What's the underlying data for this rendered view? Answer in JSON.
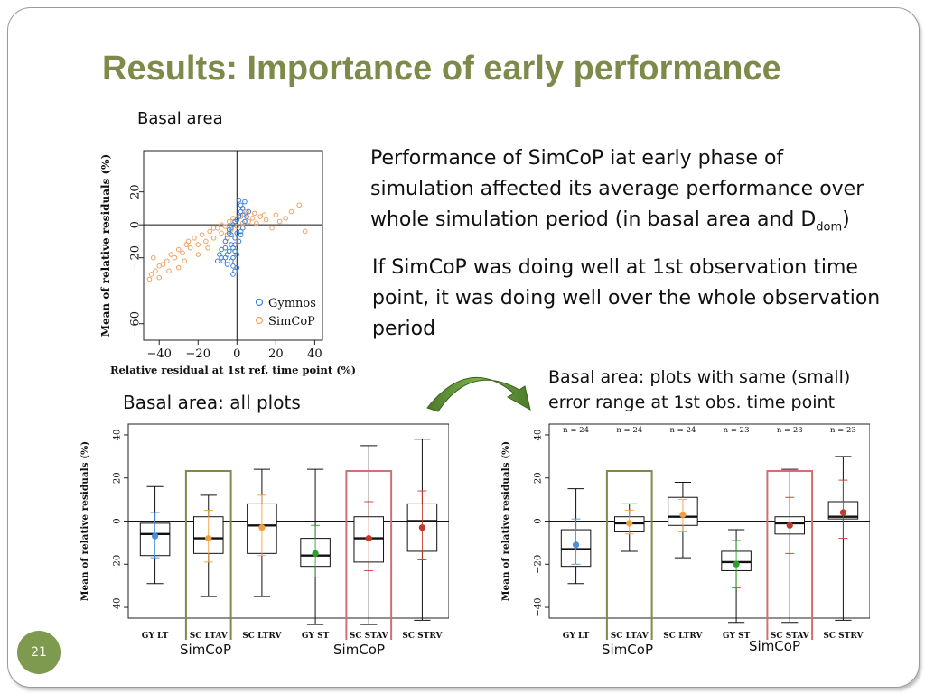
{
  "title": "Results: Importance of early performance",
  "scatter_label": "Basal area",
  "para1_a": "Performance of SimCoP iat early phase of",
  "para1_b": "simulation  affected its average performance  over",
  "para1_c": "whole  simulation period (in basal area and D",
  "para1_sub": "dom",
  "para1_end": ")",
  "para2_a": "If SimCoP was doing well at 1st observation time",
  "para2_b": "point, it was doing well over the whole observation",
  "para2_c": "period",
  "left_box_label": "Basal area: all plots",
  "right_box_label_a": "Basal area: plots with same (small)",
  "right_box_label_b": "error range at 1st obs. time point",
  "simcop_labels": [
    "SimCoP",
    "SimCoP",
    "SimCoP",
    "SimCoP"
  ],
  "slide_number": "21",
  "chart_data": [
    {
      "type": "scatter",
      "xlabel": "Relative residual at 1st ref. time point (%)",
      "ylabel": "Mean of relative residuals (%)",
      "xlim": [
        -48,
        44
      ],
      "ylim": [
        -70,
        45
      ],
      "xticks": [
        -40,
        -20,
        0,
        20,
        40
      ],
      "yticks": [
        20,
        0,
        -20,
        -60
      ],
      "legend_position": "bottom-right",
      "series": [
        {
          "name": "Gymnos",
          "color": "#3b7dd8",
          "points": [
            [
              1,
              15
            ],
            [
              2,
              12
            ],
            [
              3,
              10
            ],
            [
              4,
              14
            ],
            [
              2,
              8
            ],
            [
              1,
              5
            ],
            [
              0,
              3
            ],
            [
              -1,
              2
            ],
            [
              -2,
              0
            ],
            [
              -3,
              -2
            ],
            [
              -4,
              -5
            ],
            [
              -5,
              -8
            ],
            [
              -6,
              -10
            ],
            [
              -3,
              -12
            ],
            [
              -2,
              -14
            ],
            [
              -4,
              -16
            ],
            [
              -5,
              -18
            ],
            [
              -6,
              -20
            ],
            [
              -3,
              -22
            ],
            [
              -2,
              -25
            ],
            [
              -1,
              -28
            ],
            [
              0,
              -26
            ],
            [
              -8,
              -15
            ],
            [
              -9,
              -18
            ],
            [
              -7,
              -22
            ],
            [
              -5,
              -24
            ],
            [
              -2,
              -20
            ],
            [
              -1,
              -16
            ],
            [
              1,
              -10
            ],
            [
              2,
              -6
            ],
            [
              3,
              -2
            ],
            [
              4,
              2
            ],
            [
              5,
              5
            ],
            [
              6,
              8
            ],
            [
              0,
              -5
            ],
            [
              -1,
              -8
            ],
            [
              -3,
              -6
            ],
            [
              -4,
              -3
            ],
            [
              -6,
              -14
            ],
            [
              -8,
              -20
            ],
            [
              -10,
              -22
            ],
            [
              -1,
              -12
            ],
            [
              0,
              -18
            ],
            [
              3,
              6
            ],
            [
              2,
              -4
            ],
            [
              -2,
              -30
            ]
          ]
        },
        {
          "name": "SimCoP",
          "color": "#f0a060",
          "points": [
            [
              -45,
              -33
            ],
            [
              -44,
              -30
            ],
            [
              -42,
              -28
            ],
            [
              -40,
              -25
            ],
            [
              -38,
              -24
            ],
            [
              -43,
              -20
            ],
            [
              -36,
              -22
            ],
            [
              -34,
              -18
            ],
            [
              -32,
              -20
            ],
            [
              -30,
              -15
            ],
            [
              -28,
              -17
            ],
            [
              -26,
              -12
            ],
            [
              -25,
              -10
            ],
            [
              -24,
              -14
            ],
            [
              -22,
              -8
            ],
            [
              -20,
              -12
            ],
            [
              -18,
              -6
            ],
            [
              -16,
              -10
            ],
            [
              -14,
              -4
            ],
            [
              -12,
              -8
            ],
            [
              -10,
              -2
            ],
            [
              -8,
              -5
            ],
            [
              -6,
              -1
            ],
            [
              -4,
              2
            ],
            [
              -2,
              4
            ],
            [
              0,
              3
            ],
            [
              2,
              5
            ],
            [
              4,
              6
            ],
            [
              6,
              2
            ],
            [
              8,
              4
            ],
            [
              10,
              1
            ],
            [
              12,
              5
            ],
            [
              15,
              3
            ],
            [
              18,
              -2
            ],
            [
              20,
              6
            ],
            [
              22,
              2
            ],
            [
              25,
              4
            ],
            [
              28,
              8
            ],
            [
              32,
              12
            ],
            [
              35,
              -4
            ],
            [
              -40,
              -32
            ],
            [
              -35,
              -28
            ],
            [
              -30,
              -26
            ],
            [
              -27,
              -22
            ],
            [
              -20,
              -18
            ],
            [
              -15,
              -14
            ],
            [
              -12,
              -2
            ],
            [
              -8,
              0
            ],
            [
              -5,
              -6
            ],
            [
              -3,
              -3
            ],
            [
              0,
              -1
            ],
            [
              3,
              1
            ],
            [
              5,
              8
            ],
            [
              9,
              7
            ],
            [
              14,
              6
            ]
          ]
        }
      ]
    },
    {
      "type": "boxplot",
      "title": "Basal area: all plots",
      "ylabel": "Mean of relative residuals (%)",
      "ylim": [
        -45,
        45
      ],
      "yticks": [
        40,
        20,
        0,
        -20,
        -40
      ],
      "categories": [
        "GY LT",
        "SC LTAV",
        "SC LTRV",
        "GY ST",
        "SC STAV",
        "SC STRV"
      ],
      "boxes": [
        {
          "lo": -29,
          "q1": -16,
          "med": -6,
          "q3": -1,
          "hi": 16,
          "mean": -7,
          "color": "#4a90d9",
          "mlo": -17,
          "mhi": 4
        },
        {
          "lo": -35,
          "q1": -15,
          "med": -8,
          "q3": 2,
          "hi": 12,
          "mean": -8,
          "color": "#f0a040",
          "mlo": -19,
          "mhi": 5
        },
        {
          "lo": -35,
          "q1": -15,
          "med": -2,
          "q3": 8,
          "hi": 24,
          "mean": -3,
          "color": "#f0a040",
          "mlo": -16,
          "mhi": 12
        },
        {
          "lo": -48,
          "q1": -21,
          "med": -16,
          "q3": -8,
          "hi": 24,
          "mean": -15,
          "color": "#2ca02c",
          "mlo": -26,
          "mhi": -2
        },
        {
          "lo": -48,
          "q1": -19,
          "med": -8,
          "q3": 2,
          "hi": 35,
          "mean": -8,
          "color": "#c0392b",
          "mlo": -23,
          "mhi": 9
        },
        {
          "lo": -46,
          "q1": -14,
          "med": 0,
          "q3": 8,
          "hi": 38,
          "mean": -3,
          "color": "#c0392b",
          "mlo": -18,
          "mhi": 14
        }
      ],
      "highlighted": [
        "SC LTAV",
        "SC STAV"
      ]
    },
    {
      "type": "boxplot",
      "title": "Basal area: plots with same (small) error range at 1st obs. time point",
      "ylabel": "Mean of relative residuals (%)",
      "ylim": [
        -45,
        45
      ],
      "yticks": [
        40,
        20,
        0,
        -20,
        -40
      ],
      "counts": [
        "n = 24",
        "n = 24",
        "n = 24",
        "n = 23",
        "n = 23",
        "n = 23"
      ],
      "categories": [
        "GY LT",
        "SC LTAV",
        "SC LTRV",
        "GY ST",
        "SC STAV",
        "SC STRV"
      ],
      "boxes": [
        {
          "lo": -29,
          "q1": -21,
          "med": -13,
          "q3": -4,
          "hi": 15,
          "mean": -11,
          "color": "#4a90d9",
          "mlo": -20,
          "mhi": 1
        },
        {
          "lo": -14,
          "q1": -5,
          "med": -1,
          "q3": 2,
          "hi": 8,
          "mean": -1,
          "color": "#f0a040",
          "mlo": -6,
          "mhi": 5
        },
        {
          "lo": -17,
          "q1": -2,
          "med": 2,
          "q3": 11,
          "hi": 18,
          "mean": 3,
          "color": "#f0a040",
          "mlo": -5,
          "mhi": 10
        },
        {
          "lo": -47,
          "q1": -23,
          "med": -19,
          "q3": -14,
          "hi": -4,
          "mean": -20,
          "color": "#2ca02c",
          "mlo": -31,
          "mhi": -9
        },
        {
          "lo": -47,
          "q1": -6,
          "med": -1,
          "q3": 2,
          "hi": 24,
          "mean": -2,
          "color": "#c0392b",
          "mlo": -15,
          "mhi": 11
        },
        {
          "lo": -46,
          "q1": 1,
          "med": 2,
          "q3": 9,
          "hi": 30,
          "mean": 4,
          "color": "#c0392b",
          "mlo": -8,
          "mhi": 19
        }
      ],
      "highlighted": [
        "SC LTAV",
        "SC STAV"
      ]
    }
  ]
}
